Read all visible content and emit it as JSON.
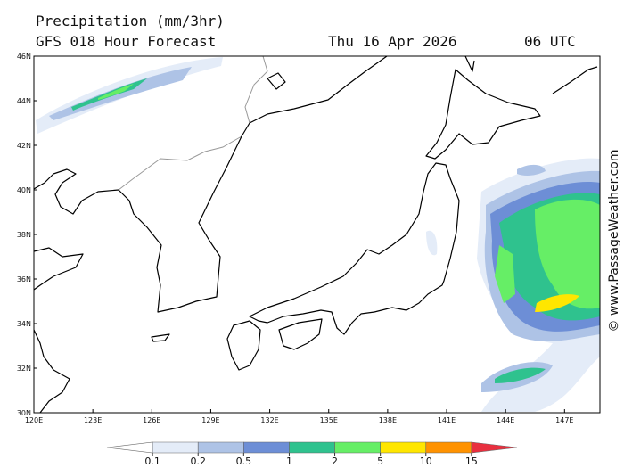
{
  "header": {
    "title": "Precipitation (mm/3hr)",
    "model": "GFS 018 Hour Forecast",
    "date": "Thu 16 Apr 2026",
    "time": "06 UTC"
  },
  "map": {
    "lat_labels": [
      "46N",
      "44N",
      "42N",
      "40N",
      "38N",
      "36N",
      "34N",
      "32N",
      "30N"
    ],
    "lon_labels": [
      "120E",
      "123E",
      "126E",
      "129E",
      "132E",
      "135E",
      "138E",
      "141E",
      "144E",
      "147E"
    ]
  },
  "colorbar": {
    "ticks": [
      0.1,
      0.2,
      0.5,
      1,
      2,
      5,
      10,
      15
    ],
    "colors": [
      "#ffffff",
      "#e4ecf8",
      "#aec3e6",
      "#6d8ed6",
      "#2fc28e",
      "#66ee66",
      "#ffe600",
      "#ff9200",
      "#e8303f"
    ]
  },
  "credit": "© www.PassageWeather.com"
}
